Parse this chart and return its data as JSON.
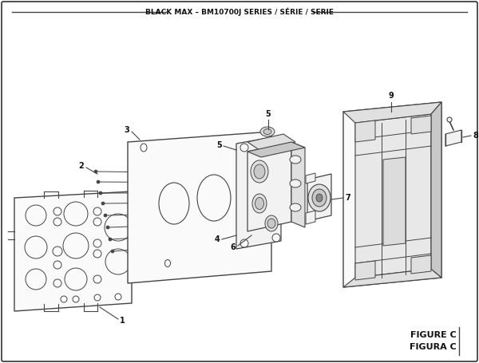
{
  "title": "BLACK MAX – BM10700J SERIES / SÉRIE / SERIE",
  "figure_label1": "FIGURE C",
  "figure_label2": "FIGURA C",
  "bg_color": "#ffffff",
  "border_color": "#333333",
  "line_color": "#444444",
  "fill_light": "#f2f2f2",
  "fill_mid": "#e0e0e0",
  "fill_dark": "#c8c8c8",
  "fill_white": "#fafafa",
  "text_color": "#111111"
}
